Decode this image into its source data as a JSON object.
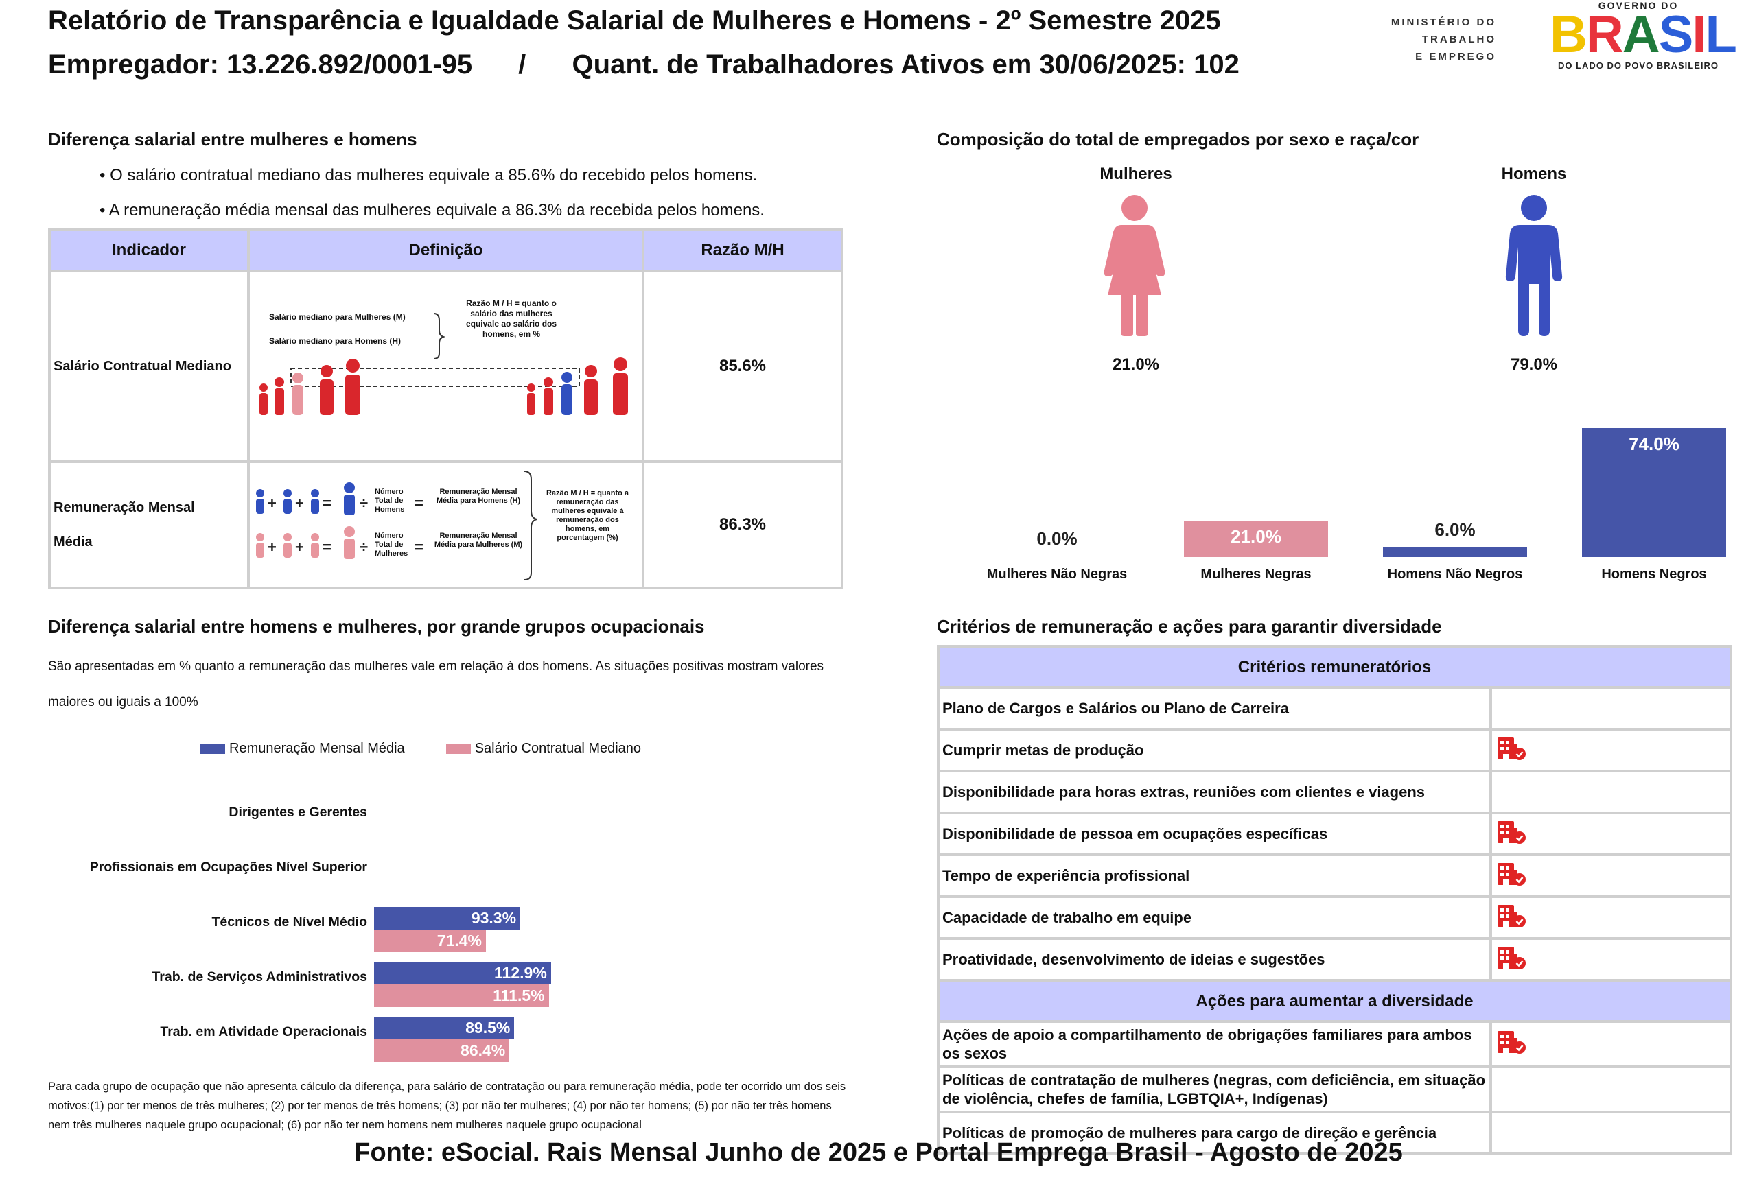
{
  "header": {
    "title": "Relatório de Transparência e Igualdade Salarial de Mulheres e Homens - 2º Semestre 2025",
    "employer_label": "Empregador: 13.226.892/0001-95",
    "separator": "/",
    "workers_label": "Quant. de Trabalhadores Ativos em 30/06/2025: 102"
  },
  "logos": {
    "ministry_lines": [
      "MINISTÉRIO DO",
      "TRABALHO",
      "E EMPREGO"
    ],
    "gov_top": "GOVERNO DO",
    "gov_word": "BRASIL",
    "gov_bottom": "DO LADO DO POVO BRASILEIRO"
  },
  "salary_gap": {
    "title": "Diferença salarial entre mulheres e homens",
    "bullets": [
      "• O salário contratual mediano das mulheres equivale a 85.6% do recebido pelos homens.",
      "• A remuneração média mensal das mulheres equivale a 86.3% da recebida pelos homens."
    ],
    "table": {
      "headers": [
        "Indicador",
        "Definição",
        "Razão M/H"
      ],
      "rows": [
        {
          "indicator": "Salário Contratual Mediano",
          "value": "85.6%",
          "def_women": "Salário mediano para Mulheres (M)",
          "def_men": "Salário mediano para Homens (H)",
          "def_ratio": "Razão M / H = quanto o salário das mulheres equivale ao salário dos homens, em %"
        },
        {
          "indicator_line1": "Remuneração Mensal",
          "indicator_line2": "Média",
          "value": "86.3%",
          "def_total_men": "Número Total de Homens",
          "def_total_women": "Número Total de Mulheres",
          "def_avg_men": "Remuneração Mensal Média para Homens (H)",
          "def_avg_women": "Remuneração Mensal Média para Mulheres (M)",
          "def_ratio": "Razão M / H = quanto a remuneração das mulheres equivale à remuneração dos homens, em porcentagem (%)"
        }
      ]
    }
  },
  "composition": {
    "title": "Composição do total de empregados por sexo e raça/cor",
    "women_label": "Mulheres",
    "men_label": "Homens",
    "women_pct": "21.0%",
    "men_pct": "79.0%",
    "women_color": "#e8818f",
    "men_color": "#3a4fbf",
    "race_chart": {
      "type": "bar",
      "categories": [
        "Mulheres Não Negras",
        "Mulheres Negras",
        "Homens Não Negros",
        "Homens Negros"
      ],
      "values": [
        0.0,
        21.0,
        6.0,
        74.0
      ],
      "labels": [
        "0.0%",
        "21.0%",
        "6.0%",
        "74.0%"
      ],
      "colors": [
        "#e0909e",
        "#e0909e",
        "#4555a8",
        "#4555a8"
      ],
      "ylim": [
        0,
        74
      ]
    }
  },
  "occupational": {
    "title": "Diferença salarial entre homens e mulheres, por grande grupos ocupacionais",
    "description": "São apresentadas em % quanto a remuneração das mulheres vale em relação à dos homens. As situações positivas mostram valores maiores ou iguais a 100%",
    "footnote": "Para cada grupo de ocupação que não apresenta cálculo da diferença, para salário de contratação ou para remuneração média, pode ter ocorrido um dos seis motivos:(1) por ter menos de três mulheres; (2) por ter menos de três homens; (3) por não ter mulheres; (4) por não ter homens; (5) por não ter três homens nem três mulheres naquele grupo ocupacional; (6) por não ter nem homens nem mulheres naquele grupo ocupacional",
    "chart_data": {
      "type": "bar",
      "orientation": "horizontal",
      "categories": [
        "Dirigentes e Gerentes",
        "Profissionais em Ocupações Nível Superior",
        "Técnicos de Nível Médio",
        "Trab. de Serviços Administrativos",
        "Trab. em Atividade Operacionais"
      ],
      "series": [
        {
          "name": "Remuneração Mensal Média",
          "color": "#4555a8",
          "values": [
            null,
            null,
            93.3,
            112.9,
            89.5
          ],
          "labels": [
            "",
            "",
            "93.3%",
            "112.9%",
            "89.5%"
          ]
        },
        {
          "name": "Salário Contratual Mediano",
          "color": "#e0909e",
          "values": [
            null,
            null,
            71.4,
            111.5,
            86.4
          ],
          "labels": [
            "",
            "",
            "71.4%",
            "111.5%",
            "86.4%"
          ]
        }
      ],
      "xlim": [
        0,
        300
      ]
    }
  },
  "criteria": {
    "title": "Critérios de remuneração e ações para garantir diversidade",
    "criteria_header": "Critérios remuneratórios",
    "criteria_rows": [
      {
        "label": "Plano de Cargos e Salários ou Plano de Carreira",
        "checked": false
      },
      {
        "label": "Cumprir metas de produção",
        "checked": true
      },
      {
        "label": "Disponibilidade para horas extras, reuniões com clientes e viagens",
        "checked": false
      },
      {
        "label": "Disponibilidade de pessoa em ocupações específicas",
        "checked": true
      },
      {
        "label": "Tempo de experiência profissional",
        "checked": true
      },
      {
        "label": "Capacidade de trabalho em equipe",
        "checked": true
      },
      {
        "label": "Proatividade, desenvolvimento de ideias e sugestões",
        "checked": true
      }
    ],
    "actions_header": "Ações para aumentar a diversidade",
    "action_rows": [
      {
        "label": "Ações de apoio a compartilhamento de obrigações familiares para ambos os sexos",
        "checked": true
      },
      {
        "label": "Políticas de contratação de mulheres (negras, com deficiência, em situação de violência, chefes de família, LGBTQIA+, Indígenas)",
        "checked": false
      },
      {
        "label": "Políticas de promoção de mulheres para cargo de direção e gerência",
        "checked": false
      }
    ]
  },
  "footer": {
    "source": "Fonte: eSocial. Rais Mensal Junho de 2025 e Portal Emprega Brasil - Agosto de 2025"
  }
}
